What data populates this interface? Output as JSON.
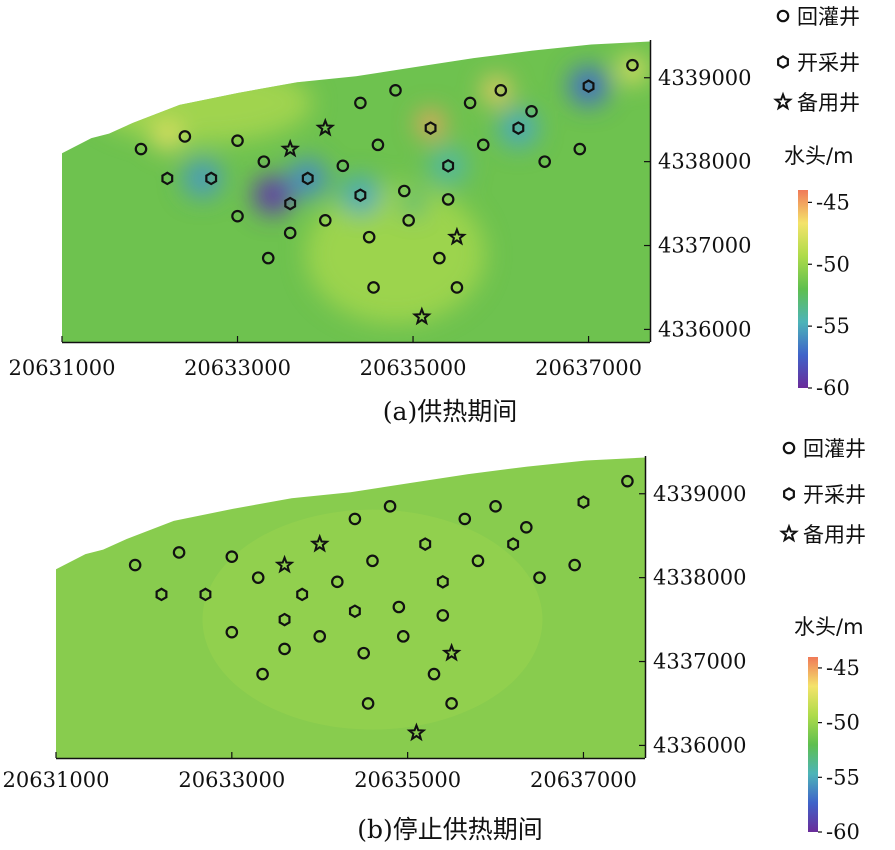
{
  "chart_data": [
    {
      "type": "contour_map",
      "title": "(a)供热期间",
      "x_ticks": [
        "20631000",
        "20633000",
        "20635000",
        "20637000"
      ],
      "y_ticks": [
        "4339000",
        "4338000",
        "4337000",
        "4336000"
      ],
      "xlim": [
        20631000,
        20637700
      ],
      "ylim": [
        4335850,
        4339450
      ],
      "colorbar": {
        "label": "水头/m",
        "ticks": [
          "-45",
          "-50",
          "-55",
          "-60"
        ],
        "range": [
          -60,
          -44
        ],
        "colors": [
          "#6a2c9a",
          "#3f63c9",
          "#4db4b8",
          "#5fbf4f",
          "#aedb4a",
          "#f4e36a",
          "#f07a58"
        ]
      },
      "background_color": "#6ec24f",
      "legend": [
        {
          "label": "回灌井",
          "marker": "circle"
        },
        {
          "label": "开采井",
          "marker": "hexagon"
        },
        {
          "label": "备用井",
          "marker": "star"
        }
      ],
      "anomalies": [
        {
          "x": 20632600,
          "y": 4337800,
          "head": -55.5
        },
        {
          "x": 20633400,
          "y": 4337600,
          "head": -59
        },
        {
          "x": 20633800,
          "y": 4337800,
          "head": -56
        },
        {
          "x": 20634400,
          "y": 4337600,
          "head": -55
        },
        {
          "x": 20635000,
          "y": 4337500,
          "head": -53
        },
        {
          "x": 20635400,
          "y": 4337950,
          "head": -54
        },
        {
          "x": 20636200,
          "y": 4338400,
          "head": -55
        },
        {
          "x": 20637000,
          "y": 4338900,
          "head": -57
        },
        {
          "x": 20635200,
          "y": 4338450,
          "head": -45
        },
        {
          "x": 20635950,
          "y": 4338850,
          "head": -46
        },
        {
          "x": 20632200,
          "y": 4338300,
          "head": -47
        },
        {
          "x": 20637500,
          "y": 4339100,
          "head": -47
        }
      ],
      "wells": {
        "recharge": [
          {
            "x": 20631900,
            "y": 4338150
          },
          {
            "x": 20632400,
            "y": 4338300
          },
          {
            "x": 20633000,
            "y": 4338250
          },
          {
            "x": 20633300,
            "y": 4338000
          },
          {
            "x": 20633000,
            "y": 4337350
          },
          {
            "x": 20633600,
            "y": 4337150
          },
          {
            "x": 20633350,
            "y": 4336850
          },
          {
            "x": 20634000,
            "y": 4337300
          },
          {
            "x": 20634200,
            "y": 4337950
          },
          {
            "x": 20634400,
            "y": 4338700
          },
          {
            "x": 20634600,
            "y": 4338200
          },
          {
            "x": 20634500,
            "y": 4337100
          },
          {
            "x": 20634550,
            "y": 4336500
          },
          {
            "x": 20634800,
            "y": 4338850
          },
          {
            "x": 20634900,
            "y": 4337650
          },
          {
            "x": 20634950,
            "y": 4337300
          },
          {
            "x": 20635300,
            "y": 4336850
          },
          {
            "x": 20635400,
            "y": 4337550
          },
          {
            "x": 20635500,
            "y": 4336500
          },
          {
            "x": 20635650,
            "y": 4338700
          },
          {
            "x": 20635800,
            "y": 4338200
          },
          {
            "x": 20636000,
            "y": 4338850
          },
          {
            "x": 20636350,
            "y": 4338600
          },
          {
            "x": 20636500,
            "y": 4338000
          },
          {
            "x": 20636900,
            "y": 4338150
          },
          {
            "x": 20637500,
            "y": 4339150
          }
        ],
        "production": [
          {
            "x": 20632200,
            "y": 4337800
          },
          {
            "x": 20632700,
            "y": 4337800
          },
          {
            "x": 20633600,
            "y": 4337500
          },
          {
            "x": 20633800,
            "y": 4337800
          },
          {
            "x": 20634400,
            "y": 4337600
          },
          {
            "x": 20635200,
            "y": 4338400
          },
          {
            "x": 20635400,
            "y": 4337950
          },
          {
            "x": 20636200,
            "y": 4338400
          },
          {
            "x": 20637000,
            "y": 4338900
          }
        ],
        "standby": [
          {
            "x": 20633600,
            "y": 4338150
          },
          {
            "x": 20634000,
            "y": 4338400
          },
          {
            "x": 20635500,
            "y": 4337100
          },
          {
            "x": 20635100,
            "y": 4336150
          }
        ]
      }
    },
    {
      "type": "contour_map",
      "title": "(b)停止供热期间",
      "x_ticks": [
        "20631000",
        "20633000",
        "20635000",
        "20637000"
      ],
      "y_ticks": [
        "4339000",
        "4338000",
        "4337000",
        "4336000"
      ],
      "xlim": [
        20631000,
        20637700
      ],
      "ylim": [
        4335850,
        4339450
      ],
      "colorbar": {
        "label": "水头/m",
        "ticks": [
          "-45",
          "-50",
          "-55",
          "-60"
        ],
        "range": [
          -60,
          -44
        ],
        "colors": [
          "#6a2c9a",
          "#3f63c9",
          "#4db4b8",
          "#5fbf4f",
          "#aedb4a",
          "#f4e36a",
          "#f07a58"
        ]
      },
      "background_color": "#88cc4e",
      "legend": [
        {
          "label": "回灌井",
          "marker": "circle"
        },
        {
          "label": "开采井",
          "marker": "hexagon"
        },
        {
          "label": "备用井",
          "marker": "star"
        }
      ],
      "anomalies": [],
      "wells": {
        "recharge": [
          {
            "x": 20631900,
            "y": 4338150
          },
          {
            "x": 20632400,
            "y": 4338300
          },
          {
            "x": 20633000,
            "y": 4338250
          },
          {
            "x": 20633300,
            "y": 4338000
          },
          {
            "x": 20633000,
            "y": 4337350
          },
          {
            "x": 20633600,
            "y": 4337150
          },
          {
            "x": 20633350,
            "y": 4336850
          },
          {
            "x": 20634000,
            "y": 4337300
          },
          {
            "x": 20634200,
            "y": 4337950
          },
          {
            "x": 20634400,
            "y": 4338700
          },
          {
            "x": 20634600,
            "y": 4338200
          },
          {
            "x": 20634500,
            "y": 4337100
          },
          {
            "x": 20634550,
            "y": 4336500
          },
          {
            "x": 20634800,
            "y": 4338850
          },
          {
            "x": 20634900,
            "y": 4337650
          },
          {
            "x": 20634950,
            "y": 4337300
          },
          {
            "x": 20635300,
            "y": 4336850
          },
          {
            "x": 20635400,
            "y": 4337550
          },
          {
            "x": 20635500,
            "y": 4336500
          },
          {
            "x": 20635650,
            "y": 4338700
          },
          {
            "x": 20635800,
            "y": 4338200
          },
          {
            "x": 20636000,
            "y": 4338850
          },
          {
            "x": 20636350,
            "y": 4338600
          },
          {
            "x": 20636500,
            "y": 4338000
          },
          {
            "x": 20636900,
            "y": 4338150
          },
          {
            "x": 20637500,
            "y": 4339150
          }
        ],
        "production": [
          {
            "x": 20632200,
            "y": 4337800
          },
          {
            "x": 20632700,
            "y": 4337800
          },
          {
            "x": 20633600,
            "y": 4337500
          },
          {
            "x": 20633800,
            "y": 4337800
          },
          {
            "x": 20634400,
            "y": 4337600
          },
          {
            "x": 20635200,
            "y": 4338400
          },
          {
            "x": 20635400,
            "y": 4337950
          },
          {
            "x": 20636200,
            "y": 4338400
          },
          {
            "x": 20637000,
            "y": 4338900
          }
        ],
        "standby": [
          {
            "x": 20633600,
            "y": 4338150
          },
          {
            "x": 20634000,
            "y": 4338400
          },
          {
            "x": 20635500,
            "y": 4337100
          },
          {
            "x": 20635100,
            "y": 4336150
          }
        ]
      }
    }
  ]
}
